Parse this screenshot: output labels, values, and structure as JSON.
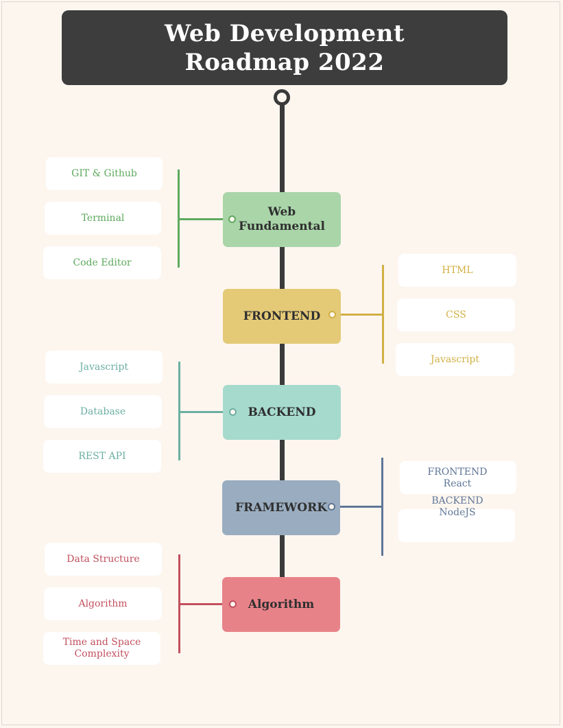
{
  "title": {
    "line1": "Web Development",
    "line2": "Roadmap 2022"
  },
  "colors": {
    "green": "#a9d5a9",
    "green_line": "#5ea95e",
    "yellow": "#e4c977",
    "yellow_line": "#d1b044",
    "teal": "#a6dacd",
    "teal_line": "#6bafa1",
    "slate": "#9aadc0",
    "slate_line": "#5f7697",
    "red": "#e88289",
    "red_line": "#c24f5e",
    "spine": "#3a3a3a",
    "title_bg": "#3d3d3d",
    "background": "#fdf6ef"
  },
  "stages": [
    {
      "label_line1": "Web",
      "label_line2": "Fundamental",
      "items": [
        "GIT & Github",
        "Terminal",
        "Code Editor"
      ]
    },
    {
      "label": "FRONTEND",
      "items": [
        "HTML",
        "CSS",
        "Javascript"
      ]
    },
    {
      "label": "BACKEND",
      "items": [
        "Javascript",
        "Database",
        "REST API"
      ]
    },
    {
      "label": "FRAMEWORK",
      "items": [
        {
          "line1": "FRONTEND",
          "line2": "React"
        },
        {
          "line1": "BACKEND",
          "line2": "NodeJS"
        }
      ]
    },
    {
      "label": "Algorithm",
      "items": [
        "Data Structure",
        "Algorithm",
        {
          "line1": "Time and Space",
          "line2": "Complexity"
        }
      ]
    }
  ]
}
